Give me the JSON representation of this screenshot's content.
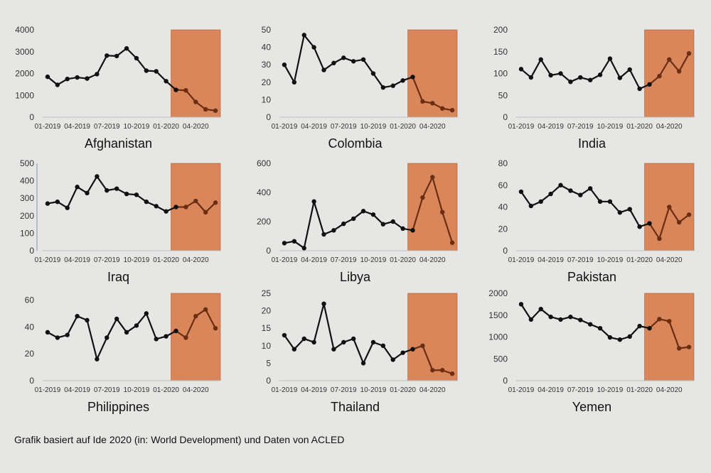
{
  "footer": {
    "source_note": "Grafik basiert auf Ide 2020 (in: World Development) und Daten von ACLED"
  },
  "colors": {
    "highlight": "#d9875a",
    "highlight_edge": "#b2582c",
    "line_pre": "#111111",
    "line_post": "#6b2e12",
    "axis": "#bfbfbf",
    "grid": "#cfcfcf"
  },
  "chart_data": [
    {
      "type": "line",
      "title": "Afghanistan",
      "x_ticks": [
        "01-2019",
        "04-2019",
        "07-2019",
        "10-2019",
        "01-2020",
        "04-2020"
      ],
      "ylim": [
        0,
        4000
      ],
      "y_ticks": [
        0,
        1000,
        2000,
        3000,
        4000
      ],
      "values": [
        1850,
        1480,
        1750,
        1820,
        1770,
        1970,
        2820,
        2800,
        3150,
        2700,
        2130,
        2100,
        1650,
        1250,
        1230,
        700,
        360,
        300
      ],
      "highlight_from_index": 13
    },
    {
      "type": "line",
      "title": "Colombia",
      "x_ticks": [
        "01-2019",
        "04-2019",
        "07-2019",
        "10-2019",
        "01-2020",
        "04-2020"
      ],
      "ylim": [
        0,
        50
      ],
      "y_ticks": [
        0,
        10,
        20,
        30,
        40,
        50
      ],
      "values": [
        30,
        20,
        47,
        40,
        27,
        31,
        34,
        32,
        33,
        25,
        17,
        18,
        21,
        23,
        9,
        8,
        5,
        4
      ],
      "highlight_from_index": 13
    },
    {
      "type": "line",
      "title": "India",
      "x_ticks": [
        "01-2019",
        "04-2019",
        "07-2019",
        "10-2019",
        "01-2020",
        "04-2020"
      ],
      "ylim": [
        0,
        200
      ],
      "y_ticks": [
        0,
        50,
        100,
        150,
        200
      ],
      "values": [
        110,
        91,
        132,
        96,
        100,
        81,
        91,
        85,
        97,
        134,
        90,
        109,
        65,
        75,
        94,
        132,
        105,
        146
      ],
      "highlight_from_index": 13
    },
    {
      "type": "line",
      "title": "Iraq",
      "x_ticks": [
        "01-2019",
        "04-2019",
        "07-2019",
        "10-2019",
        "01-2020",
        "04-2020"
      ],
      "ylim": [
        0,
        500
      ],
      "y_ticks": [
        0,
        100,
        200,
        300,
        400,
        500
      ],
      "values": [
        270,
        280,
        245,
        365,
        330,
        425,
        345,
        355,
        325,
        320,
        280,
        255,
        225,
        250,
        250,
        285,
        220,
        275
      ],
      "highlight_from_index": 13
    },
    {
      "type": "line",
      "title": "Libya",
      "x_ticks": [
        "01-2019",
        "04-2019",
        "07-2019",
        "10-2019",
        "01-2020",
        "04-2020"
      ],
      "ylim": [
        0,
        600
      ],
      "y_ticks": [
        0,
        200,
        400,
        600
      ],
      "values": [
        52,
        65,
        18,
        338,
        112,
        140,
        185,
        220,
        272,
        248,
        182,
        200,
        152,
        140,
        365,
        505,
        265,
        55
      ],
      "highlight_from_index": 13
    },
    {
      "type": "line",
      "title": "Pakistan",
      "x_ticks": [
        "01-2019",
        "04-2019",
        "07-2019",
        "10-2019",
        "01-2020",
        "04-2020"
      ],
      "ylim": [
        0,
        80
      ],
      "y_ticks": [
        0,
        20,
        40,
        60,
        80
      ],
      "values": [
        54,
        41,
        45,
        52,
        60,
        55,
        51,
        57,
        45,
        45,
        35,
        38,
        22,
        25,
        11,
        40,
        26,
        33
      ],
      "highlight_from_index": 13
    },
    {
      "type": "line",
      "title": "Philippines",
      "x_ticks": [
        "01-2019",
        "04-2019",
        "07-2019",
        "10-2019",
        "01-2020",
        "04-2020"
      ],
      "ylim": [
        0,
        65
      ],
      "y_ticks": [
        0,
        20,
        40,
        60
      ],
      "values": [
        36,
        32,
        34,
        48,
        45,
        16,
        32,
        46,
        36,
        41,
        50,
        31,
        33,
        37,
        32,
        48,
        53,
        39
      ],
      "highlight_from_index": 13
    },
    {
      "type": "line",
      "title": "Thailand",
      "x_ticks": [
        "01-2019",
        "04-2019",
        "07-2019",
        "10-2019",
        "01-2020",
        "04-2020"
      ],
      "ylim": [
        0,
        25
      ],
      "y_ticks": [
        0,
        5,
        10,
        15,
        20,
        25
      ],
      "values": [
        13,
        9,
        12,
        11,
        22,
        9,
        11,
        12,
        5,
        11,
        10,
        6,
        8,
        9,
        10,
        3,
        3,
        2
      ],
      "highlight_from_index": 13
    },
    {
      "type": "line",
      "title": "Yemen",
      "x_ticks": [
        "01-2019",
        "04-2019",
        "07-2019",
        "10-2019",
        "01-2020",
        "04-2020"
      ],
      "ylim": [
        0,
        2000
      ],
      "y_ticks": [
        0,
        500,
        1000,
        1500,
        2000
      ],
      "values": [
        1750,
        1400,
        1640,
        1460,
        1400,
        1460,
        1390,
        1290,
        1200,
        990,
        940,
        1010,
        1250,
        1200,
        1410,
        1360,
        740,
        770
      ],
      "highlight_from_index": 13
    }
  ]
}
